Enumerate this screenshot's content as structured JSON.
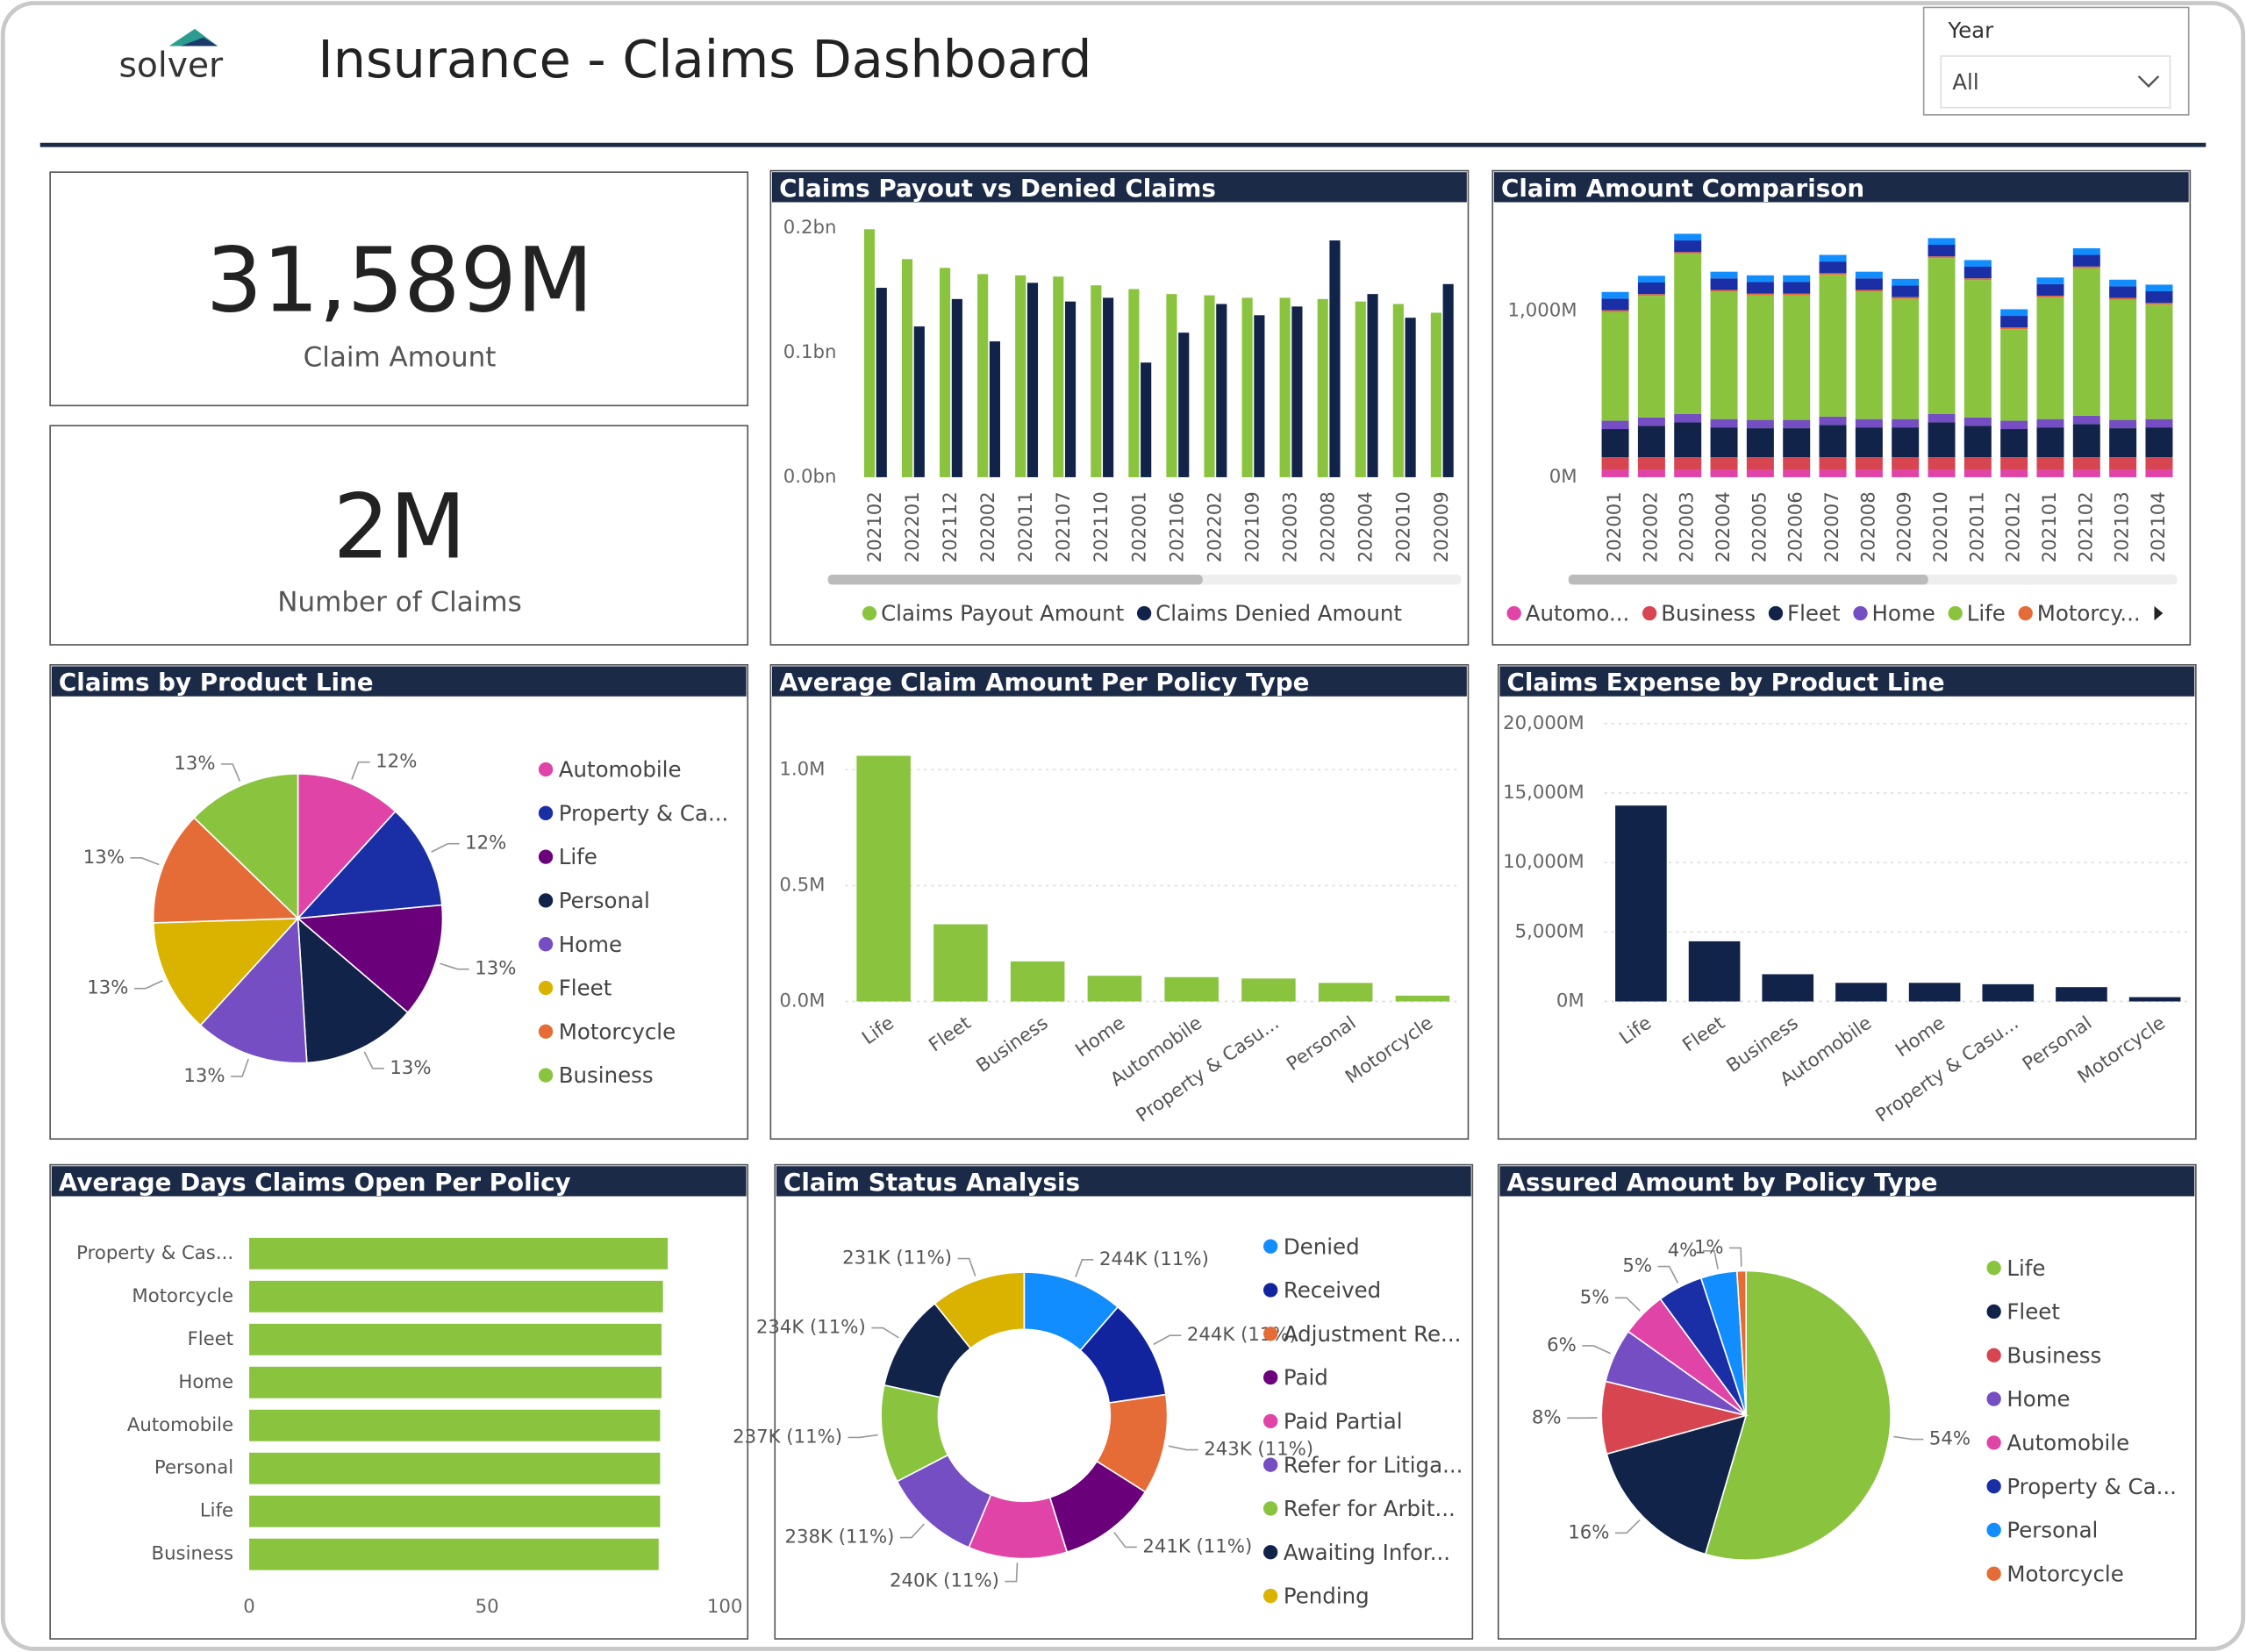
{
  "header": {
    "logo": "solver",
    "title": "Insurance - Claims Dashboard"
  },
  "filter": {
    "label": "Year",
    "value": "All"
  },
  "kpis": [
    {
      "value": "31,589M",
      "label": "Claim Amount"
    },
    {
      "value": "2M",
      "label": "Number of Claims"
    }
  ],
  "chart_data": [
    {
      "type": "bar",
      "title": "Claims Payout vs Denied Claims",
      "categories": [
        "202102",
        "202201",
        "202112",
        "202002",
        "202011",
        "202107",
        "202110",
        "202001",
        "202106",
        "202202",
        "202109",
        "202003",
        "202008",
        "202004",
        "202010",
        "202009"
      ],
      "series": [
        {
          "name": "Claims Payout Amount",
          "color": "#8ac43f",
          "values": [
            0.199,
            0.175,
            0.168,
            0.163,
            0.162,
            0.161,
            0.154,
            0.151,
            0.147,
            0.146,
            0.144,
            0.144,
            0.143,
            0.141,
            0.139,
            0.132
          ]
        },
        {
          "name": "Claims Denied Amount",
          "color": "#12234a",
          "values": [
            0.152,
            0.121,
            0.143,
            0.109,
            0.156,
            0.141,
            0.144,
            0.092,
            0.116,
            0.139,
            0.13,
            0.137,
            0.19,
            0.147,
            0.128,
            0.155
          ]
        }
      ],
      "ylim": [
        0,
        0.2
      ],
      "yticks": [
        {
          "value": 0,
          "label": "0.0bn"
        },
        {
          "value": 0.1,
          "label": "0.1bn"
        },
        {
          "value": 0.2,
          "label": "0.2bn"
        }
      ],
      "grid": false
    },
    {
      "type": "stacked_bar",
      "title": "Claim Amount Comparison",
      "categories": [
        "202001",
        "202002",
        "202003",
        "202004",
        "202005",
        "202006",
        "202007",
        "202008",
        "202009",
        "202010",
        "202011",
        "202012",
        "202101",
        "202102",
        "202103",
        "202104"
      ],
      "series": [
        {
          "name": "Automo...",
          "color": "#e044a7",
          "values": [
            45,
            45,
            45,
            45,
            45,
            45,
            45,
            45,
            45,
            45,
            45,
            45,
            45,
            45,
            45,
            45
          ]
        },
        {
          "name": "Business",
          "color": "#d64550",
          "values": [
            75,
            75,
            75,
            75,
            75,
            75,
            75,
            75,
            75,
            75,
            75,
            75,
            75,
            75,
            75,
            75
          ]
        },
        {
          "name": "Fleet",
          "color": "#12234a",
          "values": [
            170,
            190,
            210,
            180,
            175,
            175,
            195,
            180,
            180,
            210,
            190,
            170,
            180,
            200,
            175,
            180
          ]
        },
        {
          "name": "Home",
          "color": "#744ec2",
          "values": [
            50,
            50,
            50,
            50,
            50,
            50,
            50,
            50,
            50,
            50,
            50,
            50,
            50,
            50,
            50,
            50
          ]
        },
        {
          "name": "Life",
          "color": "#8ac43f",
          "values": [
            655,
            732,
            965,
            767,
            750,
            750,
            853,
            767,
            724,
            939,
            827,
            551,
            732,
            888,
            724,
            689
          ]
        },
        {
          "name": "Motorcy...",
          "color": "#e66c37",
          "values": [
            10,
            10,
            10,
            10,
            10,
            10,
            10,
            10,
            10,
            10,
            10,
            10,
            10,
            10,
            10,
            10
          ]
        },
        {
          "color": "#1a2ea6",
          "values": [
            70,
            70,
            70,
            70,
            70,
            70,
            70,
            70,
            70,
            70,
            70,
            70,
            70,
            70,
            70,
            70
          ]
        },
        {
          "color": "#118dff",
          "values": [
            40,
            40,
            40,
            40,
            40,
            40,
            40,
            40,
            40,
            40,
            40,
            40,
            40,
            40,
            40,
            40
          ]
        }
      ],
      "ylim": [
        0,
        1500
      ],
      "yticks": [
        {
          "value": 0,
          "label": "0M"
        },
        {
          "value": 1000,
          "label": "1,000M"
        }
      ],
      "grid": false
    },
    {
      "type": "pie",
      "title": "Claims by Product Line",
      "categories": [
        "Automobile",
        "Property & Ca...",
        "Life",
        "Personal",
        "Home",
        "Fleet",
        "Motorcycle",
        "Business"
      ],
      "values": [
        12,
        12,
        13,
        13,
        13,
        13,
        13,
        13
      ],
      "value_labels": [
        "12%",
        "12%",
        "13%",
        "13%",
        "13%",
        "13%",
        "13%",
        "13%"
      ],
      "colors": [
        "#e044a7",
        "#1a2ea6",
        "#6b007b",
        "#12234a",
        "#744ec2",
        "#d9b300",
        "#e66c37",
        "#8ac43f"
      ]
    },
    {
      "type": "bar",
      "title": "Average Claim Amount Per Policy Type",
      "categories": [
        "Life",
        "Fleet",
        "Business",
        "Home",
        "Automobile",
        "Property & Casu...",
        "Personal",
        "Motorcycle"
      ],
      "values": [
        1.06,
        0.333,
        0.173,
        0.111,
        0.105,
        0.099,
        0.08,
        0.025
      ],
      "color": "#8ac43f",
      "ylim": [
        0,
        1.1
      ],
      "yticks": [
        {
          "value": 0,
          "label": "0.0M"
        },
        {
          "value": 0.5,
          "label": "0.5M"
        },
        {
          "value": 1,
          "label": "1.0M"
        }
      ],
      "grid": true
    },
    {
      "type": "bar",
      "title": "Claims Expense by Product Line",
      "categories": [
        "Life",
        "Fleet",
        "Business",
        "Automobile",
        "Home",
        "Property & Casu...",
        "Personal",
        "Motorcycle"
      ],
      "values": [
        14100,
        4330,
        1960,
        1340,
        1340,
        1240,
        1030,
        310
      ],
      "color": "#12234a",
      "ylim": [
        0,
        20000
      ],
      "yticks": [
        {
          "value": 0,
          "label": "0M"
        },
        {
          "value": 5000,
          "label": "5,000M"
        },
        {
          "value": 10000,
          "label": "10,000M"
        },
        {
          "value": 15000,
          "label": "15,000M"
        },
        {
          "value": 20000,
          "label": "20,000M"
        }
      ],
      "grid": true
    },
    {
      "type": "hbar",
      "title": "Average Days Claims Open Per Policy",
      "categories": [
        "Property & Cas...",
        "Motorcycle",
        "Fleet",
        "Home",
        "Automobile",
        "Personal",
        "Life",
        "Business"
      ],
      "values": [
        88.0,
        87.0,
        86.7,
        86.7,
        86.4,
        86.4,
        86.4,
        86.1
      ],
      "color": "#8ac43f",
      "xlim": [
        0,
        100
      ],
      "xticks": [
        0,
        50,
        100
      ]
    },
    {
      "type": "donut",
      "title": "Claim Status Analysis",
      "categories": [
        "Denied",
        "Received",
        "Adjustment Re...",
        "Paid",
        "Paid Partial",
        "Refer for Litiga...",
        "Refer for Arbit...",
        "Awaiting Infor...",
        "Pending"
      ],
      "values": [
        244000,
        244000,
        243000,
        241000,
        240000,
        238000,
        237000,
        234000,
        231000
      ],
      "value_labels": [
        "244K (11%)",
        "244K (11%)",
        "243K (11%)",
        "241K (11%)",
        "240K (11%)",
        "238K (11%)",
        "237K (11%)",
        "234K (11%)",
        "231K (11%)"
      ],
      "colors": [
        "#118dff",
        "#12239e",
        "#e66c37",
        "#6b007b",
        "#e044a7",
        "#744ec2",
        "#8ac43f",
        "#12234a",
        "#d9b300"
      ]
    },
    {
      "type": "pie",
      "title": "Assured Amount by Policy Type",
      "categories": [
        "Life",
        "Fleet",
        "Business",
        "Home",
        "Automobile",
        "Property & Ca...",
        "Personal",
        "Motorcycle"
      ],
      "values": [
        54,
        16,
        8,
        6,
        5,
        5,
        4,
        1
      ],
      "value_labels": [
        "54%",
        "16%",
        "8%",
        "6%",
        "5%",
        "5%",
        "4%",
        "1%"
      ],
      "colors": [
        "#8ac43f",
        "#12234a",
        "#d64550",
        "#744ec2",
        "#e044a7",
        "#1a2ea6",
        "#118dff",
        "#e66c37"
      ]
    }
  ]
}
